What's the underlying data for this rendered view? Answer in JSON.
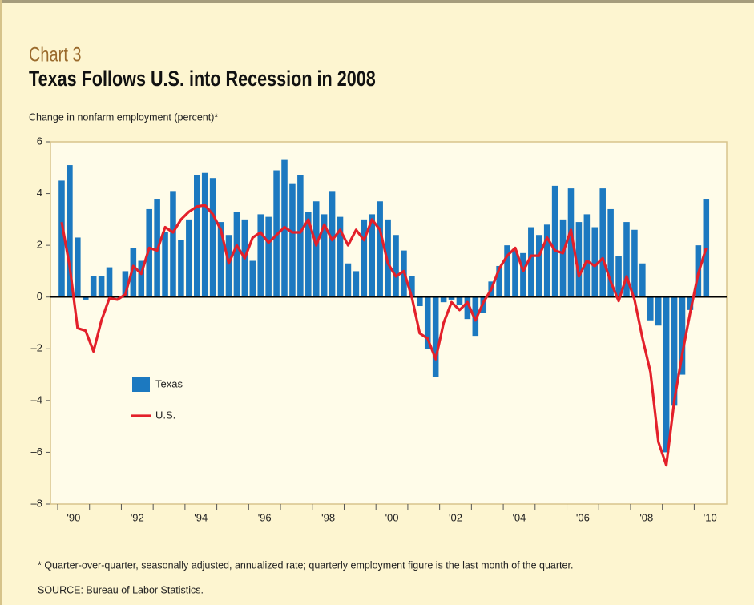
{
  "chart_data": {
    "type": "bar_line",
    "kicker": "Chart 3",
    "title": "Texas Follows U.S. into Recession in 2008",
    "y_label": "Change in nonfarm employment (percent)*",
    "footnote": "* Quarter-over-quarter, seasonally adjusted, annualized rate; quarterly employment figure is the last month of the quarter.",
    "source": "SOURCE: Bureau of Labor Statistics.",
    "categories": [
      null,
      "'90",
      null,
      null,
      null,
      null,
      null,
      null,
      null,
      "'92",
      null,
      null,
      null,
      null,
      null,
      null,
      null,
      "'94",
      null,
      null,
      null,
      null,
      null,
      null,
      null,
      "'96",
      null,
      null,
      null,
      null,
      null,
      null,
      null,
      "'98",
      null,
      null,
      null,
      null,
      null,
      null,
      null,
      "'00",
      null,
      null,
      null,
      null,
      null,
      null,
      null,
      "'02",
      null,
      null,
      null,
      null,
      null,
      null,
      null,
      "'04",
      null,
      null,
      null,
      null,
      null,
      null,
      null,
      "'06",
      null,
      null,
      null,
      null,
      null,
      null,
      null,
      "'08",
      null,
      null,
      null,
      null,
      null,
      null,
      null,
      "'10"
    ],
    "series": [
      {
        "name": "Texas",
        "kind": "bar",
        "color": "#1c79c0",
        "values": [
          4.5,
          5.1,
          2.3,
          -0.1,
          0.8,
          0.8,
          1.15,
          0,
          1.0,
          1.9,
          1.4,
          3.4,
          3.8,
          2.5,
          4.1,
          2.2,
          3.0,
          4.7,
          4.8,
          4.6,
          2.9,
          2.4,
          3.3,
          3.0,
          1.4,
          3.2,
          3.1,
          4.9,
          5.3,
          4.4,
          4.7,
          3.3,
          3.7,
          3.2,
          4.1,
          3.1,
          1.3,
          1.0,
          3.0,
          3.2,
          3.7,
          3.0,
          2.4,
          1.8,
          0.8,
          -0.35,
          -2.0,
          -3.1,
          -0.2,
          -0.1,
          -0.3,
          -0.85,
          -1.5,
          -0.6,
          0.6,
          1.2,
          2.0,
          1.8,
          1.7,
          2.7,
          2.4,
          2.8,
          4.3,
          3.0,
          4.2,
          2.9,
          3.2,
          2.7,
          4.2,
          3.4,
          1.6,
          2.9,
          2.6,
          1.3,
          -0.9,
          -1.1,
          -6.0,
          -4.2,
          -3.0,
          -0.5,
          2.0,
          3.8
        ]
      },
      {
        "name": "U.S.",
        "kind": "line",
        "color": "#e3202a",
        "values": [
          2.9,
          1.2,
          -1.2,
          -1.3,
          -2.1,
          -0.9,
          -0.05,
          -0.1,
          0.1,
          1.2,
          0.9,
          1.9,
          1.8,
          2.7,
          2.5,
          3.0,
          3.3,
          3.5,
          3.55,
          3.2,
          2.6,
          1.3,
          2.0,
          1.5,
          2.3,
          2.5,
          2.1,
          2.4,
          2.7,
          2.5,
          2.5,
          3.0,
          2.0,
          2.8,
          2.2,
          2.6,
          2.0,
          2.6,
          2.2,
          3.0,
          2.6,
          1.3,
          0.8,
          1.0,
          0.0,
          -1.4,
          -1.6,
          -2.4,
          -1.0,
          -0.2,
          -0.5,
          -0.2,
          -0.9,
          -0.2,
          0.3,
          1.1,
          1.6,
          1.9,
          1.0,
          1.6,
          1.6,
          2.3,
          1.8,
          1.7,
          2.6,
          0.8,
          1.4,
          1.2,
          1.5,
          0.6,
          -0.15,
          0.8,
          -0.1,
          -1.6,
          -2.9,
          -5.6,
          -6.5,
          -4.0,
          -2.2,
          -0.6,
          0.9,
          1.9
        ]
      }
    ],
    "ylim": [
      -8,
      6
    ],
    "yticks": [
      {
        "value": -8,
        "label": "–8"
      },
      {
        "value": -6,
        "label": "–6"
      },
      {
        "value": -4,
        "label": "–4"
      },
      {
        "value": -2,
        "label": "–2"
      },
      0,
      2,
      4,
      6
    ],
    "grid": false,
    "legend": "left"
  }
}
